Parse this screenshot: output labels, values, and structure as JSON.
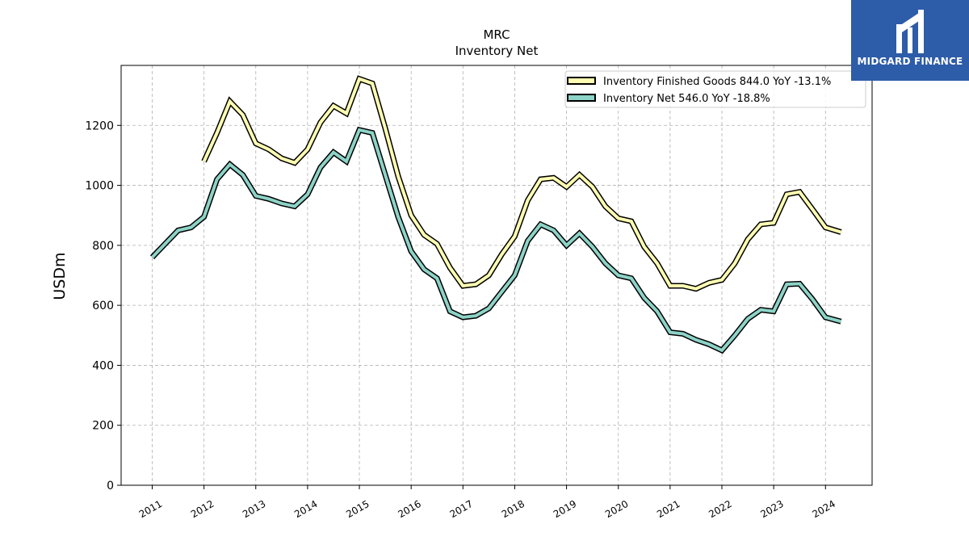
{
  "logo": {
    "text": "MIDGARD FINANCE",
    "background": "#2d5ca8"
  },
  "chart_data": {
    "type": "line",
    "title": "MRC",
    "subtitle": "Inventory Net",
    "xlabel": "",
    "ylabel": "USDm",
    "ylim": [
      0,
      1400
    ],
    "yticks": [
      0,
      200,
      400,
      600,
      800,
      1000,
      1200
    ],
    "xlim": [
      2010.4,
      2024.9
    ],
    "xticks": [
      "2011",
      "2012",
      "2013",
      "2014",
      "2015",
      "2016",
      "2017",
      "2018",
      "2019",
      "2020",
      "2021",
      "2022",
      "2023",
      "2024"
    ],
    "grid": true,
    "legend_position": "top-right",
    "series": [
      {
        "name": "Inventory Finished Goods  844.0 YoY -13.1%",
        "color": "#ffffb3",
        "points": [
          [
            2012.0,
            1080
          ],
          [
            2012.25,
            1175
          ],
          [
            2012.5,
            1280
          ],
          [
            2012.75,
            1235
          ],
          [
            2013.0,
            1140
          ],
          [
            2013.25,
            1120
          ],
          [
            2013.5,
            1090
          ],
          [
            2013.75,
            1075
          ],
          [
            2014.0,
            1120
          ],
          [
            2014.25,
            1210
          ],
          [
            2014.5,
            1265
          ],
          [
            2014.75,
            1240
          ],
          [
            2015.0,
            1355
          ],
          [
            2015.25,
            1340
          ],
          [
            2015.5,
            1190
          ],
          [
            2015.75,
            1030
          ],
          [
            2016.0,
            900
          ],
          [
            2016.25,
            835
          ],
          [
            2016.5,
            805
          ],
          [
            2016.75,
            725
          ],
          [
            2017.0,
            665
          ],
          [
            2017.25,
            670
          ],
          [
            2017.5,
            700
          ],
          [
            2017.75,
            770
          ],
          [
            2018.0,
            830
          ],
          [
            2018.25,
            950
          ],
          [
            2018.5,
            1020
          ],
          [
            2018.75,
            1025
          ],
          [
            2019.0,
            995
          ],
          [
            2019.25,
            1035
          ],
          [
            2019.5,
            995
          ],
          [
            2019.75,
            930
          ],
          [
            2020.0,
            890
          ],
          [
            2020.25,
            880
          ],
          [
            2020.5,
            795
          ],
          [
            2020.75,
            740
          ],
          [
            2021.0,
            665
          ],
          [
            2021.25,
            665
          ],
          [
            2021.5,
            655
          ],
          [
            2021.75,
            675
          ],
          [
            2022.0,
            685
          ],
          [
            2022.25,
            740
          ],
          [
            2022.5,
            820
          ],
          [
            2022.75,
            870
          ],
          [
            2023.0,
            875
          ],
          [
            2023.25,
            970
          ],
          [
            2023.5,
            978
          ],
          [
            2023.75,
            920
          ],
          [
            2024.0,
            860
          ],
          [
            2024.3,
            844
          ]
        ]
      },
      {
        "name": "Inventory Net  546.0 YoY -18.8%",
        "color": "#8dd3c7",
        "points": [
          [
            2011.0,
            760
          ],
          [
            2011.25,
            805
          ],
          [
            2011.5,
            850
          ],
          [
            2011.75,
            860
          ],
          [
            2012.0,
            895
          ],
          [
            2012.25,
            1020
          ],
          [
            2012.5,
            1070
          ],
          [
            2012.75,
            1035
          ],
          [
            2013.0,
            965
          ],
          [
            2013.25,
            955
          ],
          [
            2013.5,
            940
          ],
          [
            2013.75,
            930
          ],
          [
            2014.0,
            970
          ],
          [
            2014.25,
            1060
          ],
          [
            2014.5,
            1110
          ],
          [
            2014.75,
            1080
          ],
          [
            2015.0,
            1185
          ],
          [
            2015.25,
            1175
          ],
          [
            2015.5,
            1035
          ],
          [
            2015.75,
            895
          ],
          [
            2016.0,
            780
          ],
          [
            2016.25,
            720
          ],
          [
            2016.5,
            690
          ],
          [
            2016.75,
            580
          ],
          [
            2017.0,
            560
          ],
          [
            2017.25,
            565
          ],
          [
            2017.5,
            590
          ],
          [
            2017.75,
            645
          ],
          [
            2018.0,
            700
          ],
          [
            2018.25,
            815
          ],
          [
            2018.5,
            870
          ],
          [
            2018.75,
            850
          ],
          [
            2019.0,
            800
          ],
          [
            2019.25,
            840
          ],
          [
            2019.5,
            795
          ],
          [
            2019.75,
            740
          ],
          [
            2020.0,
            700
          ],
          [
            2020.25,
            690
          ],
          [
            2020.5,
            625
          ],
          [
            2020.75,
            580
          ],
          [
            2021.0,
            510
          ],
          [
            2021.25,
            505
          ],
          [
            2021.5,
            485
          ],
          [
            2021.75,
            470
          ],
          [
            2022.0,
            450
          ],
          [
            2022.25,
            500
          ],
          [
            2022.5,
            555
          ],
          [
            2022.75,
            585
          ],
          [
            2023.0,
            580
          ],
          [
            2023.25,
            670
          ],
          [
            2023.5,
            672
          ],
          [
            2023.75,
            620
          ],
          [
            2024.0,
            560
          ],
          [
            2024.3,
            546
          ]
        ]
      }
    ]
  }
}
